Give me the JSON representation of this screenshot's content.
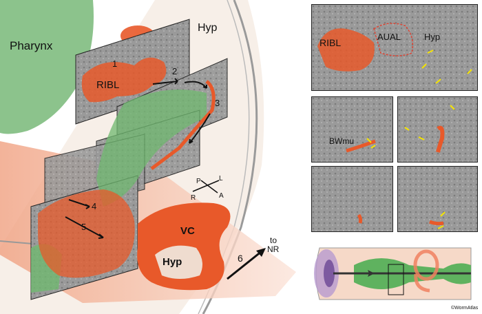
{
  "main_figure": {
    "labels": {
      "pharynx": "Pharynx",
      "hyp_top": "Hyp",
      "ribl": "RIBL",
      "vc": "VC",
      "hyp_vc": "Hyp",
      "to_nr_line1": "to",
      "to_nr_line2": "NR"
    },
    "step_numbers": [
      "1",
      "2",
      "3",
      "4",
      "5",
      "6"
    ],
    "orientation": {
      "p": "P",
      "l": "L",
      "r": "R",
      "a": "A"
    }
  },
  "right_panels": {
    "top": {
      "ribl": "RIBL",
      "aual": "AUAL",
      "hyp": "Hyp"
    },
    "middle_left": {
      "bwmu": "BWmu"
    }
  },
  "credit": "©WormAtlas",
  "colors": {
    "pharynx_green": "#8cc38c",
    "cell_orange": "#e8592a",
    "hyp_beige": "#e9d8c8",
    "em_gray": "#8d8d8d"
  }
}
